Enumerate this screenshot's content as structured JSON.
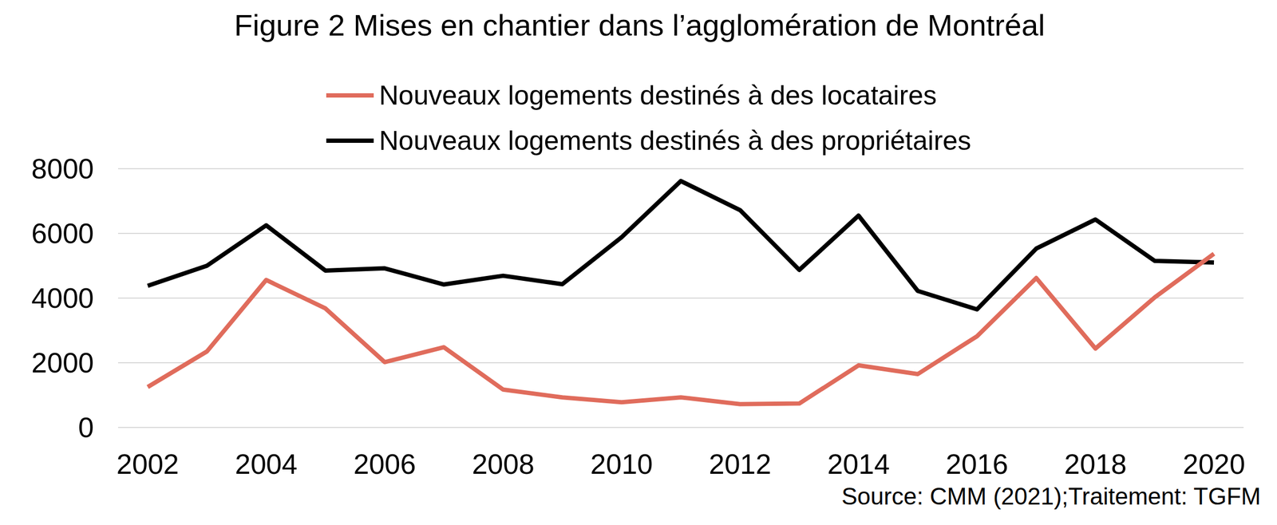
{
  "chart_data": {
    "type": "line",
    "title": "Figure 2 Mises en chantier dans l’agglomération de Montréal",
    "annotations": [
      "Source: CMM (2021);Traitement: TGFM"
    ],
    "x": [
      2002,
      2003,
      2004,
      2005,
      2006,
      2007,
      2008,
      2009,
      2010,
      2011,
      2012,
      2013,
      2014,
      2015,
      2016,
      2017,
      2018,
      2019,
      2020
    ],
    "series": [
      {
        "name": "Nouveaux logements destinés à des locataires",
        "color": "#e06c5c",
        "values": [
          1250,
          2350,
          4560,
          3680,
          2020,
          2480,
          1170,
          930,
          780,
          930,
          720,
          740,
          1920,
          1650,
          2820,
          4620,
          2440,
          4020,
          5370
        ]
      },
      {
        "name": "Nouveaux logements destinés à des propriétaires",
        "color": "#000000",
        "values": [
          4380,
          5000,
          6250,
          4850,
          4920,
          4420,
          4690,
          4430,
          5880,
          7620,
          6720,
          4870,
          6550,
          4220,
          3650,
          5530,
          6430,
          5150,
          5100
        ]
      }
    ],
    "xlim": [
      2001.5,
      2020.5
    ],
    "xticks": [
      2002,
      2004,
      2006,
      2008,
      2010,
      2012,
      2014,
      2016,
      2018,
      2020
    ],
    "ylim": [
      0,
      8000
    ],
    "yticks": [
      0,
      2000,
      4000,
      6000,
      8000
    ],
    "grid": true,
    "legend": "top"
  }
}
